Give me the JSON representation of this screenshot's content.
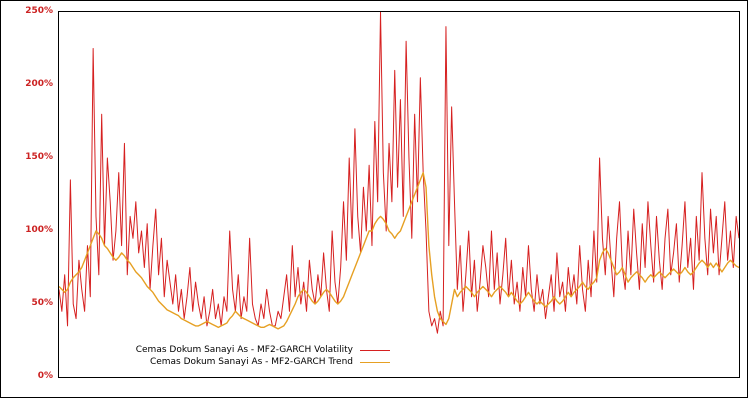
{
  "chart_data": {
    "type": "line",
    "title": "",
    "xlabel": "",
    "ylabel": "",
    "ylim": [
      0,
      250
    ],
    "yticks": [
      {
        "value": 0,
        "label": "0%"
      },
      {
        "value": 50,
        "label": "50%"
      },
      {
        "value": 100,
        "label": "100%"
      },
      {
        "value": 150,
        "label": "150%"
      },
      {
        "value": 200,
        "label": "200%"
      },
      {
        "value": 250,
        "label": "250%"
      }
    ],
    "tick_label_color": "#cc2222",
    "legend_position": "bottom-left-inside",
    "grid": false,
    "series": [
      {
        "name": "Cemas Dokum Sanayi As - MF2-GARCH Volatility",
        "color": "#d62020",
        "width": 1,
        "values": [
          60,
          45,
          70,
          35,
          135,
          50,
          40,
          80,
          60,
          45,
          90,
          55,
          225,
          110,
          70,
          180,
          90,
          150,
          120,
          80,
          100,
          140,
          90,
          160,
          70,
          110,
          95,
          120,
          85,
          100,
          75,
          105,
          60,
          90,
          115,
          70,
          95,
          55,
          80,
          65,
          50,
          70,
          45,
          60,
          40,
          55,
          75,
          45,
          65,
          50,
          40,
          55,
          35,
          45,
          60,
          40,
          50,
          35,
          55,
          45,
          100,
          60,
          45,
          70,
          40,
          55,
          45,
          95,
          50,
          40,
          35,
          50,
          40,
          60,
          45,
          35,
          35,
          45,
          40,
          55,
          70,
          45,
          90,
          55,
          75,
          50,
          65,
          45,
          80,
          60,
          50,
          70,
          55,
          85,
          60,
          45,
          100,
          65,
          50,
          75,
          120,
          80,
          150,
          95,
          170,
          110,
          85,
          130,
          100,
          145,
          90,
          175,
          120,
          250,
          140,
          100,
          160,
          120,
          210,
          130,
          190,
          110,
          230,
          150,
          95,
          180,
          120,
          205,
          140,
          100,
          45,
          35,
          40,
          30,
          45,
          35,
          240,
          90,
          185,
          120,
          60,
          90,
          45,
          70,
          100,
          55,
          80,
          45,
          65,
          90,
          75,
          55,
          100,
          60,
          85,
          50,
          70,
          95,
          55,
          80,
          50,
          65,
          45,
          75,
          55,
          90,
          60,
          45,
          70,
          50,
          60,
          40,
          55,
          70,
          45,
          85,
          55,
          65,
          45,
          75,
          55,
          70,
          50,
          90,
          60,
          45,
          80,
          55,
          100,
          65,
          150,
          95,
          70,
          110,
          80,
          55,
          95,
          120,
          75,
          60,
          100,
          70,
          115,
          85,
          60,
          105,
          75,
          120,
          90,
          65,
          110,
          80,
          60,
          95,
          115,
          70,
          85,
          105,
          65,
          90,
          120,
          75,
          95,
          60,
          110,
          80,
          140,
          95,
          70,
          115,
          85,
          110,
          70,
          95,
          120,
          80,
          100,
          75,
          110,
          95
        ]
      },
      {
        "name": "Cemas Dokum Sanayi As - MF2-GARCH Trend",
        "color": "#e6a023",
        "width": 1.4,
        "values": [
          62,
          60,
          58,
          60,
          65,
          68,
          70,
          72,
          75,
          80,
          85,
          90,
          95,
          100,
          98,
          95,
          90,
          88,
          85,
          82,
          80,
          82,
          85,
          83,
          80,
          78,
          75,
          72,
          70,
          68,
          65,
          62,
          60,
          58,
          55,
          52,
          50,
          48,
          46,
          45,
          44,
          43,
          42,
          40,
          39,
          38,
          37,
          36,
          35,
          35,
          36,
          37,
          38,
          37,
          36,
          35,
          34,
          35,
          36,
          37,
          40,
          42,
          45,
          43,
          41,
          40,
          39,
          38,
          37,
          36,
          35,
          34,
          34,
          35,
          36,
          35,
          34,
          33,
          34,
          35,
          38,
          42,
          46,
          50,
          55,
          58,
          60,
          58,
          55,
          52,
          50,
          52,
          55,
          58,
          60,
          58,
          55,
          52,
          50,
          52,
          55,
          60,
          65,
          70,
          75,
          80,
          85,
          90,
          95,
          100,
          100,
          105,
          108,
          110,
          108,
          105,
          100,
          98,
          95,
          98,
          100,
          105,
          110,
          115,
          120,
          125,
          130,
          135,
          140,
          130,
          90,
          70,
          55,
          45,
          40,
          38,
          36,
          40,
          50,
          60,
          55,
          58,
          60,
          62,
          60,
          58,
          55,
          58,
          60,
          62,
          60,
          58,
          55,
          58,
          60,
          62,
          60,
          58,
          55,
          58,
          55,
          52,
          50,
          52,
          55,
          58,
          55,
          52,
          50,
          52,
          50,
          48,
          50,
          52,
          55,
          52,
          50,
          52,
          55,
          58,
          55,
          58,
          60,
          62,
          65,
          62,
          60,
          63,
          65,
          68,
          80,
          85,
          88,
          85,
          80,
          75,
          70,
          72,
          75,
          70,
          65,
          68,
          70,
          72,
          70,
          68,
          65,
          68,
          70,
          68,
          70,
          72,
          70,
          68,
          70,
          72,
          74,
          72,
          70,
          72,
          75,
          72,
          70,
          72,
          75,
          78,
          80,
          78,
          75,
          78,
          75,
          78,
          75,
          72,
          75,
          78,
          80,
          78,
          76,
          75
        ]
      }
    ]
  }
}
